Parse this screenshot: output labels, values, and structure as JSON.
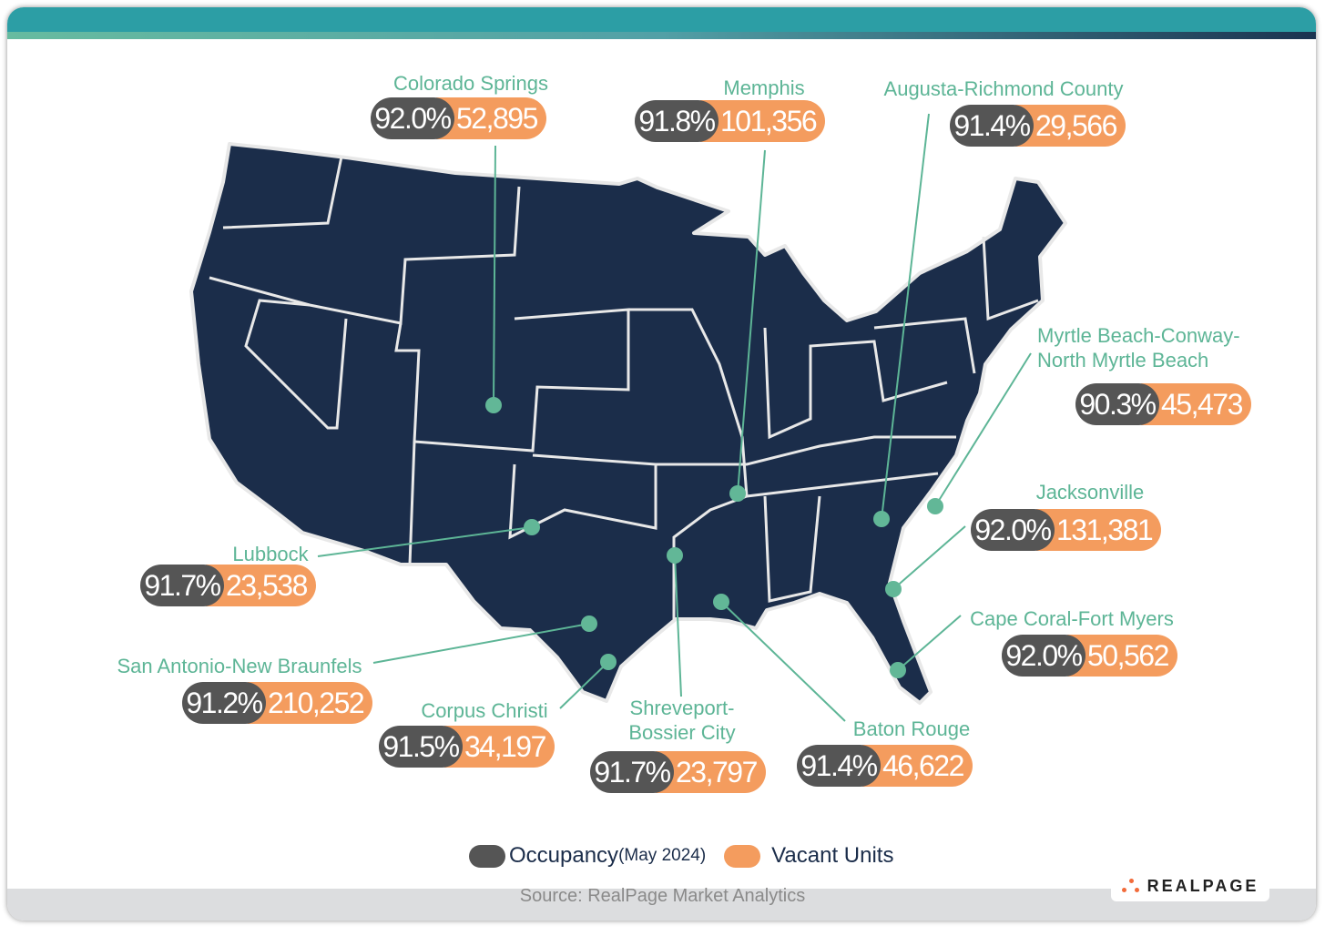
{
  "colors": {
    "occupancy": "#555555",
    "vacant": "#f49c5e",
    "map": "#1b2d4a",
    "label": "#5db596",
    "header": "#2c9ea5"
  },
  "markets": [
    {
      "name": "Colorado Springs",
      "occupancy": "92.0%",
      "vacant_units": "52,895"
    },
    {
      "name": "Memphis",
      "occupancy": "91.8%",
      "vacant_units": "101,356"
    },
    {
      "name": "Augusta-Richmond County",
      "occupancy": "91.4%",
      "vacant_units": "29,566"
    },
    {
      "name": "Myrtle Beach-Conway-",
      "name2": "North Myrtle Beach",
      "occupancy": "90.3%",
      "vacant_units": "45,473"
    },
    {
      "name": "Jacksonville",
      "occupancy": "92.0%",
      "vacant_units": "131,381"
    },
    {
      "name": "Cape Coral-Fort Myers",
      "occupancy": "92.0%",
      "vacant_units": "50,562"
    },
    {
      "name": "Baton Rouge",
      "occupancy": "91.4%",
      "vacant_units": "46,622"
    },
    {
      "name": "Shreveport-",
      "name2": "Bossier City",
      "occupancy": "91.7%",
      "vacant_units": "23,797"
    },
    {
      "name": "Corpus Christi",
      "occupancy": "91.5%",
      "vacant_units": "34,197"
    },
    {
      "name": "San Antonio-New Braunfels",
      "occupancy": "91.2%",
      "vacant_units": "210,252"
    },
    {
      "name": "Lubbock",
      "occupancy": "91.7%",
      "vacant_units": "23,538"
    }
  ],
  "legend": {
    "occupancy": "Occupancy",
    "occupancy_note": "(May 2024)",
    "vacant": "Vacant Units"
  },
  "source": "Source: RealPage Market Analytics",
  "logo": "REALPAGE"
}
